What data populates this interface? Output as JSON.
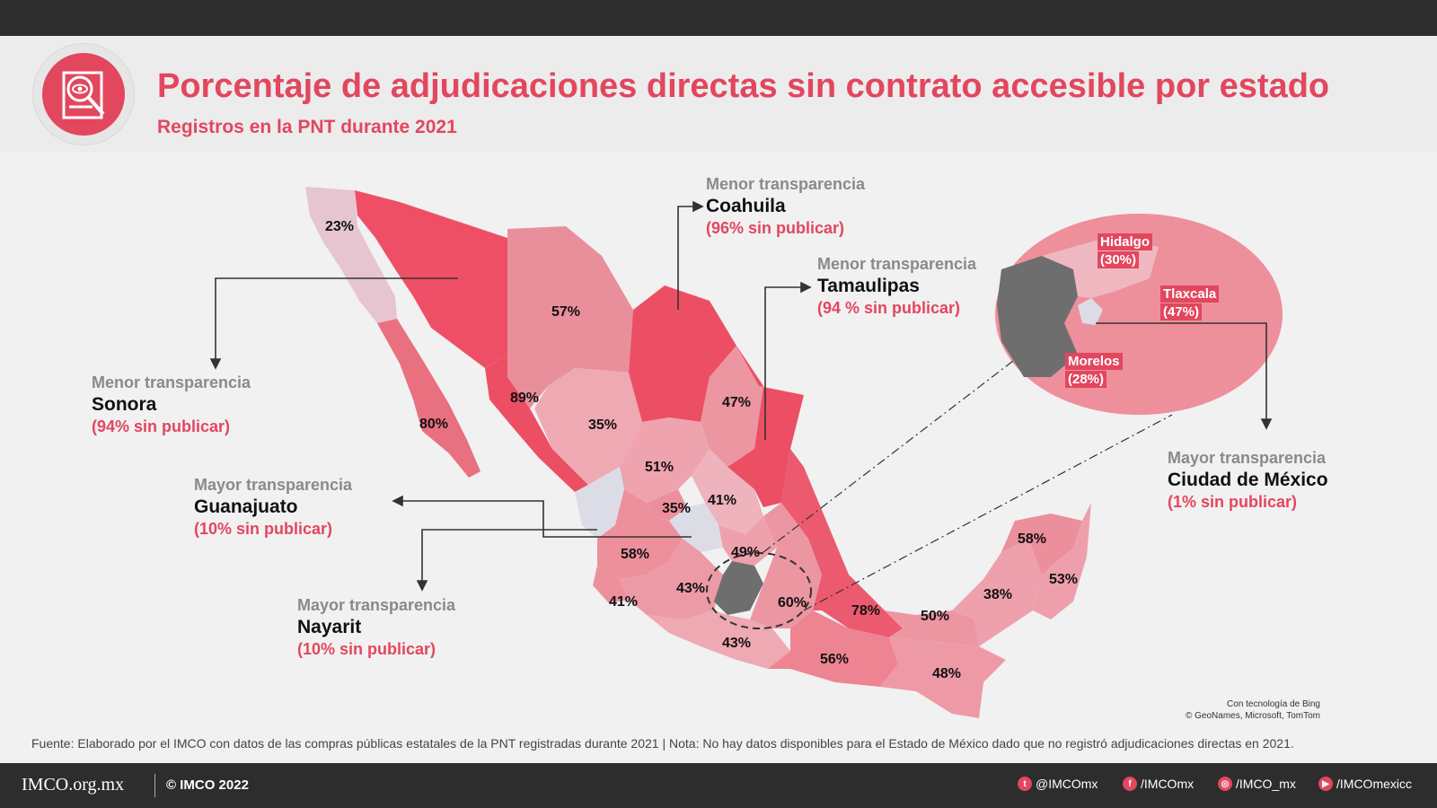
{
  "header": {
    "title": "Porcentaje de adjudicaciones directas sin contrato accesible por estado",
    "subtitle": "Registros en la PNT durante 2021",
    "logo_icon": "document-eye-magnifier-icon"
  },
  "colors": {
    "accent": "#e2475e",
    "dark": "#2d2d2d",
    "no_data": "#6e6e6e",
    "low": "#dcdce6"
  },
  "states": [
    {
      "name": "Baja California",
      "label": "23%"
    },
    {
      "name": "Baja California Sur",
      "label": "80%"
    },
    {
      "name": "Sonora",
      "label": ""
    },
    {
      "name": "Chihuahua",
      "label": "57%"
    },
    {
      "name": "Coahuila",
      "label": ""
    },
    {
      "name": "Nuevo León",
      "label": "47%"
    },
    {
      "name": "Tamaulipas",
      "label": ""
    },
    {
      "name": "Sinaloa",
      "label": "89%"
    },
    {
      "name": "Durango",
      "label": "35%"
    },
    {
      "name": "Zacatecas",
      "label": "51%"
    },
    {
      "name": "San Luis Potosí",
      "label": "41%"
    },
    {
      "name": "Aguascalientes",
      "label": "35%"
    },
    {
      "name": "Jalisco",
      "label": "58%"
    },
    {
      "name": "Querétaro/Hidalgo",
      "label": "49%"
    },
    {
      "name": "Colima",
      "label": "41%"
    },
    {
      "name": "Michoacán",
      "label": "43%"
    },
    {
      "name": "Guerrero",
      "label": "43%"
    },
    {
      "name": "Puebla",
      "label": "60%"
    },
    {
      "name": "Veracruz",
      "label": "78%"
    },
    {
      "name": "Oaxaca",
      "label": "56%"
    },
    {
      "name": "Tabasco",
      "label": "50%"
    },
    {
      "name": "Chiapas",
      "label": "48%"
    },
    {
      "name": "Campeche",
      "label": "38%"
    },
    {
      "name": "Yucatán",
      "label": "58%"
    },
    {
      "name": "Quintana Roo",
      "label": "53%"
    }
  ],
  "callouts": {
    "coahuila": {
      "kind": "Menor transparencia",
      "state": "Coahuila",
      "value": "(96% sin publicar)"
    },
    "tamaulipas": {
      "kind": "Menor transparencia",
      "state": "Tamaulipas",
      "value": "(94 % sin publicar)"
    },
    "sonora": {
      "kind": "Menor transparencia",
      "state": "Sonora",
      "value": "(94% sin publicar)"
    },
    "guanajuato": {
      "kind": "Mayor transparencia",
      "state": "Guanajuato",
      "value": "(10% sin publicar)"
    },
    "nayarit": {
      "kind": "Mayor transparencia",
      "state": "Nayarit",
      "value": "(10% sin publicar)"
    },
    "cdmx": {
      "kind": "Mayor transparencia",
      "state": "Ciudad de México",
      "value": "(1% sin publicar)"
    }
  },
  "inset": {
    "hidalgo": {
      "name": "Hidalgo",
      "value": "(30%)"
    },
    "tlaxcala": {
      "name": "Tlaxcala",
      "value": "(47%)"
    },
    "morelos": {
      "name": "Morelos",
      "value": "(28%)"
    }
  },
  "credits": {
    "line1": "Con tecnología de Bing",
    "line2": "© GeoNames, Microsoft, TomTom"
  },
  "source": "Fuente: Elaborado por el IMCO con datos de las compras públicas estatales de la PNT registradas durante 2021 | Nota: No hay datos disponibles para el Estado de México dado que no registró adjudicaciones directas en 2021.",
  "footer": {
    "brand": "IMCO.org.mx",
    "copyright": "© IMCO 2022",
    "social": [
      {
        "icon": "twitter-icon",
        "glyph": "t",
        "handle": "@IMCOmx"
      },
      {
        "icon": "facebook-icon",
        "glyph": "f",
        "handle": "/IMCOmx"
      },
      {
        "icon": "instagram-icon",
        "glyph": "◎",
        "handle": "/IMCO_mx"
      },
      {
        "icon": "youtube-icon",
        "glyph": "▶",
        "handle": "/IMCOmexicc"
      }
    ]
  }
}
